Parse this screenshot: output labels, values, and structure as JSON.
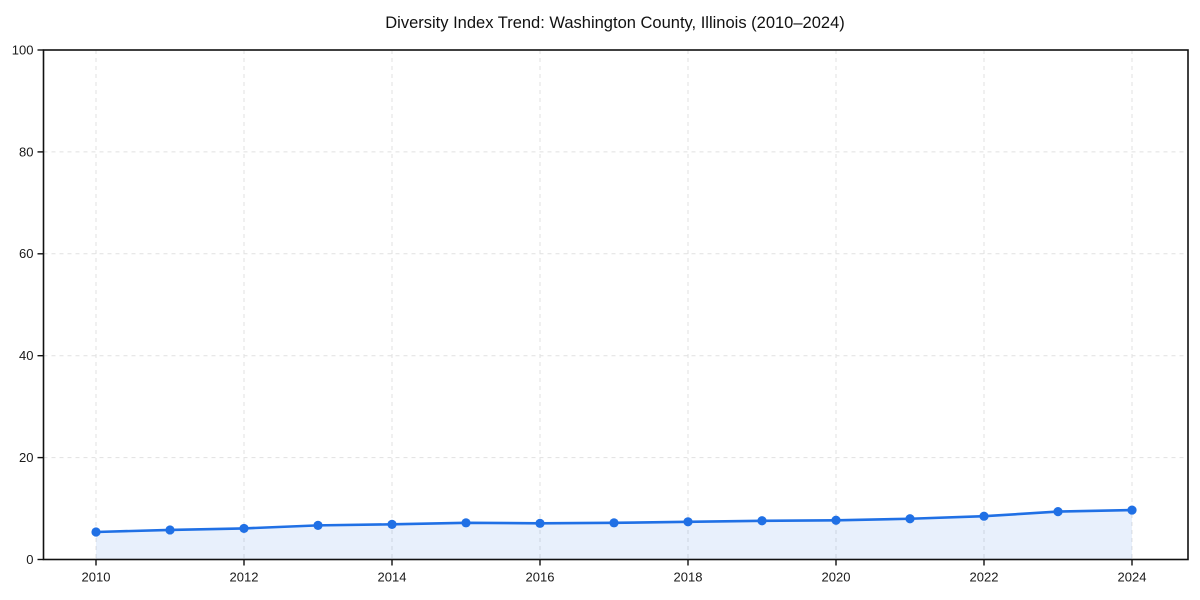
{
  "chart_data": {
    "type": "line",
    "title": "Diversity Index Trend: Washington County, Illinois (2010–2024)",
    "x": [
      2010,
      2011,
      2012,
      2013,
      2014,
      2015,
      2016,
      2017,
      2018,
      2019,
      2020,
      2021,
      2022,
      2023,
      2024
    ],
    "series": [
      {
        "name": "Diversity Index",
        "values": [
          5.4,
          5.8,
          6.1,
          6.7,
          6.9,
          7.2,
          7.1,
          7.2,
          7.4,
          7.6,
          7.7,
          8.0,
          8.5,
          9.4,
          9.7
        ]
      }
    ],
    "xlabel": "",
    "ylabel": "",
    "xlim": [
      2009.3,
      2024.7
    ],
    "ylim": [
      0,
      100
    ],
    "yticks": [
      0,
      20,
      40,
      60,
      80,
      100
    ],
    "ytick_labels": [
      "0",
      "20",
      "40",
      "60",
      "80",
      "100"
    ],
    "xticks": [
      2010,
      2012,
      2014,
      2016,
      2018,
      2020,
      2022,
      2024
    ],
    "xtick_labels": [
      "2010",
      "2012",
      "2014",
      "2016",
      "2018",
      "2020",
      "2022",
      "2024"
    ],
    "grid": true,
    "grid_style": "dashed",
    "legend": "none",
    "line_color": "#2070e5",
    "marker": "circle",
    "marker_color": "#2070e5",
    "area_fill_color": "rgba(32,112,229,0.10)",
    "background_color": "#ffffff",
    "spine_color": "#111111",
    "gridline_color": "#e1e1e1"
  }
}
